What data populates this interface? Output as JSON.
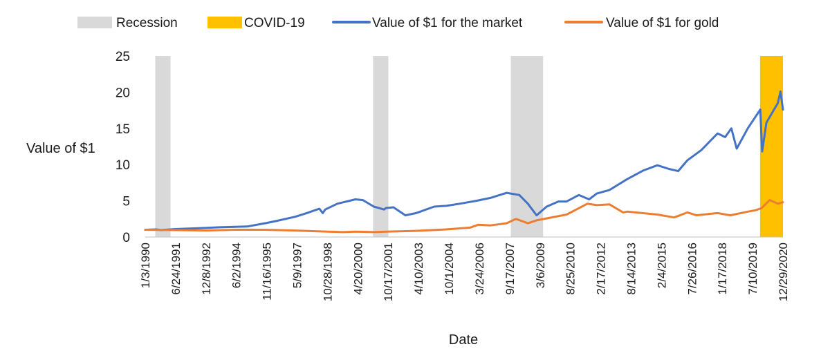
{
  "chart_data": {
    "type": "line",
    "xlabel": "Date",
    "ylabel": "Value of $1",
    "ylim": [
      0,
      25
    ],
    "yticks": [
      0,
      5,
      10,
      15,
      20,
      25
    ],
    "x_range": [
      "1990-01-03",
      "2021-03-31"
    ],
    "x_tick_labels": [
      "1/3/1990",
      "6/24/1991",
      "12/8/1992",
      "6/2/1994",
      "11/16/1995",
      "5/9/1997",
      "10/28/1998",
      "4/20/2000",
      "10/17/2001",
      "4/10/2003",
      "10/1/2004",
      "3/24/2006",
      "9/17/2007",
      "3/6/2009",
      "8/25/2010",
      "2/17/2012",
      "8/14/2013",
      "2/4/2015",
      "7/26/2016",
      "1/17/2018",
      "7/10/2019",
      "12/29/2020"
    ],
    "grid": false,
    "legend_position": "top",
    "legend": [
      {
        "label": "Recession",
        "kind": "band",
        "color": "#d9d9d9"
      },
      {
        "label": "COVID-19",
        "kind": "band",
        "color": "#ffc000"
      },
      {
        "label": "Value of $1 for the market",
        "kind": "line",
        "color": "#4472c4"
      },
      {
        "label": "Value of $1 for gold",
        "kind": "line",
        "color": "#ed7d31"
      }
    ],
    "shaded_periods": [
      {
        "label": "Recession",
        "start": "1990-07-01",
        "end": "1991-03-31"
      },
      {
        "label": "Recession",
        "start": "2001-03-01",
        "end": "2001-11-30"
      },
      {
        "label": "Recession",
        "start": "2007-12-01",
        "end": "2009-06-30"
      },
      {
        "label": "COVID-19",
        "start": "2020-02-15",
        "end": "2021-03-31"
      }
    ],
    "series": [
      {
        "name": "Value of $1 for the market",
        "color": "#4472c4",
        "points": [
          [
            "1990-01-03",
            1.0
          ],
          [
            "1990-07-15",
            1.05
          ],
          [
            "1990-10-15",
            0.95
          ],
          [
            "1991-06-24",
            1.1
          ],
          [
            "1992-12-08",
            1.25
          ],
          [
            "1993-09-01",
            1.35
          ],
          [
            "1994-06-02",
            1.4
          ],
          [
            "1995-01-01",
            1.45
          ],
          [
            "1995-11-16",
            1.9
          ],
          [
            "1996-06-01",
            2.2
          ],
          [
            "1997-05-09",
            2.8
          ],
          [
            "1997-12-01",
            3.3
          ],
          [
            "1998-07-15",
            3.9
          ],
          [
            "1998-09-15",
            3.3
          ],
          [
            "1998-10-28",
            3.8
          ],
          [
            "1999-06-01",
            4.6
          ],
          [
            "2000-04-20",
            5.2
          ],
          [
            "2000-09-01",
            5.1
          ],
          [
            "2001-03-15",
            4.2
          ],
          [
            "2001-09-15",
            3.8
          ],
          [
            "2001-10-17",
            4.0
          ],
          [
            "2002-03-01",
            4.1
          ],
          [
            "2002-10-01",
            3.0
          ],
          [
            "2003-04-10",
            3.3
          ],
          [
            "2004-03-01",
            4.2
          ],
          [
            "2004-10-01",
            4.3
          ],
          [
            "2005-06-01",
            4.6
          ],
          [
            "2006-03-24",
            5.0
          ],
          [
            "2006-12-01",
            5.4
          ],
          [
            "2007-09-17",
            6.1
          ],
          [
            "2008-05-01",
            5.8
          ],
          [
            "2008-10-01",
            4.6
          ],
          [
            "2009-03-06",
            3.0
          ],
          [
            "2009-09-01",
            4.2
          ],
          [
            "2010-04-01",
            4.9
          ],
          [
            "2010-08-25",
            4.9
          ],
          [
            "2011-04-01",
            5.8
          ],
          [
            "2011-10-01",
            5.2
          ],
          [
            "2012-02-17",
            6.0
          ],
          [
            "2012-10-01",
            6.5
          ],
          [
            "2013-08-14",
            8.0
          ],
          [
            "2014-06-01",
            9.2
          ],
          [
            "2015-02-04",
            9.9
          ],
          [
            "2015-09-01",
            9.4
          ],
          [
            "2016-02-11",
            9.1
          ],
          [
            "2016-07-26",
            10.6
          ],
          [
            "2017-04-01",
            12.0
          ],
          [
            "2018-01-17",
            14.3
          ],
          [
            "2018-06-01",
            13.8
          ],
          [
            "2018-09-20",
            15.0
          ],
          [
            "2018-12-24",
            12.2
          ],
          [
            "2019-07-10",
            15.0
          ],
          [
            "2020-02-19",
            17.6
          ],
          [
            "2020-03-23",
            11.8
          ],
          [
            "2020-06-08",
            15.8
          ],
          [
            "2020-12-29",
            18.5
          ],
          [
            "2021-02-15",
            20.1
          ],
          [
            "2021-03-31",
            17.6
          ]
        ]
      },
      {
        "name": "Value of $1 for gold",
        "color": "#ed7d31",
        "points": [
          [
            "1990-01-03",
            1.0
          ],
          [
            "1991-06-24",
            0.95
          ],
          [
            "1993-01-01",
            0.9
          ],
          [
            "1994-06-02",
            1.0
          ],
          [
            "1995-11-16",
            1.0
          ],
          [
            "1997-05-09",
            0.9
          ],
          [
            "1998-10-28",
            0.75
          ],
          [
            "1999-09-01",
            0.68
          ],
          [
            "2000-04-20",
            0.73
          ],
          [
            "2001-04-01",
            0.68
          ],
          [
            "2001-10-17",
            0.73
          ],
          [
            "2003-04-10",
            0.85
          ],
          [
            "2004-10-01",
            1.05
          ],
          [
            "2005-12-01",
            1.3
          ],
          [
            "2006-05-01",
            1.7
          ],
          [
            "2006-12-01",
            1.6
          ],
          [
            "2007-09-17",
            1.9
          ],
          [
            "2008-03-01",
            2.5
          ],
          [
            "2008-10-01",
            1.9
          ],
          [
            "2009-03-06",
            2.3
          ],
          [
            "2010-08-25",
            3.1
          ],
          [
            "2011-09-01",
            4.6
          ],
          [
            "2012-02-17",
            4.4
          ],
          [
            "2012-10-01",
            4.5
          ],
          [
            "2013-06-01",
            3.4
          ],
          [
            "2013-08-14",
            3.5
          ],
          [
            "2015-02-04",
            3.1
          ],
          [
            "2015-12-01",
            2.7
          ],
          [
            "2016-07-26",
            3.4
          ],
          [
            "2017-01-01",
            3.0
          ],
          [
            "2018-01-17",
            3.3
          ],
          [
            "2018-09-01",
            3.0
          ],
          [
            "2019-07-10",
            3.5
          ],
          [
            "2019-12-01",
            3.7
          ],
          [
            "2020-03-15",
            4.0
          ],
          [
            "2020-08-06",
            5.1
          ],
          [
            "2020-12-29",
            4.6
          ],
          [
            "2021-03-31",
            4.8
          ]
        ]
      }
    ]
  }
}
